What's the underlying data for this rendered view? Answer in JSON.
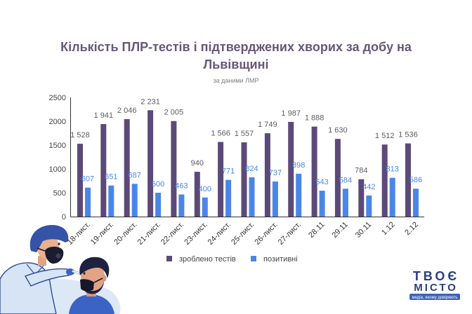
{
  "chart_data": {
    "type": "bar",
    "title": "Кількість ПЛР-тестів і підтверджених хворих за добу на Львівщині",
    "subtitle": "за даними ЛМР",
    "xlabel": "",
    "ylabel": "",
    "categories": [
      "18-лист.",
      "19-лист.",
      "20-лист.",
      "21-лист.",
      "22-лист.",
      "23-лист.",
      "24-лист.",
      "25-лист.",
      "26-лист.",
      "27-лист.",
      "28.11",
      "29.11",
      "30.11",
      "1.12",
      "2.12"
    ],
    "series": [
      {
        "name": "зроблено тестів",
        "color": "#5b4a78",
        "values": [
          1528,
          1941,
          2046,
          2231,
          2005,
          940,
          1566,
          1557,
          1749,
          1987,
          1888,
          1630,
          784,
          1512,
          1536
        ],
        "data_labels": [
          "1 528",
          "1 941",
          "2 046",
          "2 231",
          "2 005",
          "940",
          "1 566",
          "1 557",
          "1 749",
          "1 987",
          "1 888",
          "1 630",
          "784",
          "1 512",
          "1 536"
        ]
      },
      {
        "name": "позитивні",
        "color": "#4a86e8",
        "values": [
          607,
          651,
          687,
          500,
          463,
          400,
          771,
          824,
          737,
          898,
          543,
          584,
          442,
          813,
          586
        ],
        "data_labels": [
          "607",
          "651",
          "687",
          "500",
          "463",
          "400",
          "771",
          "824",
          "737",
          "898",
          "543",
          "584",
          "442",
          "813",
          "586"
        ]
      }
    ],
    "ylim": [
      0,
      2500
    ],
    "yticks": [
      0,
      500,
      1000,
      1500,
      2000,
      2500
    ],
    "grid": false,
    "legend": "bottom-center"
  },
  "logo": {
    "line1": "ТВОЄ",
    "line2": "МІСТО",
    "tagline": "медіа, якому довіряють",
    "colors": {
      "primary": "#2c3f7e",
      "accent": "#3d63b8"
    }
  }
}
